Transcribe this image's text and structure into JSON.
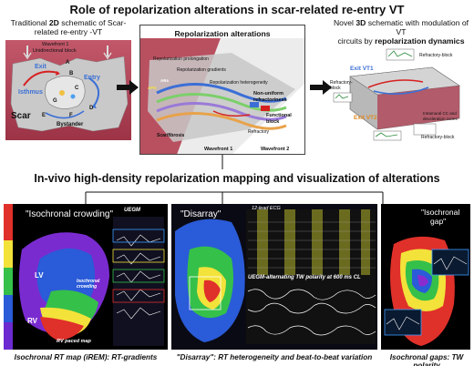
{
  "title": "Role of repolarization alterations in scar-related re-entry VT",
  "top": {
    "left_caption_1": "Traditional ",
    "left_caption_2d": "2D",
    "left_caption_2": " schematic of Scar-",
    "left_caption_3": "related re-entry -VT",
    "middle_caption": "Repolarization alterations",
    "right_caption_1": "Novel ",
    "right_caption_3d": "3D",
    "right_caption_2": " schematic with modulation of VT",
    "right_caption_3": "circuits by ",
    "right_caption_bold": "repolarization dynamics"
  },
  "left_schematic": {
    "wavefront": "Wavefront 1",
    "block": "Unidirectional block",
    "exit": "Exit",
    "entry": "Entry",
    "isthmus": "Isthmus",
    "scar": "Scar",
    "bystander": "Bystander",
    "letters": [
      "A",
      "B",
      "C",
      "D",
      "E",
      "F",
      "G"
    ]
  },
  "middle_schematic": {
    "prolongation": "Repolarization prolongation",
    "gradients": "Repolarization gradients",
    "heterogeneity": "Repolarization heterogeneity",
    "non_uniform": "Non-uniform",
    "refractoriness": "refractoriness",
    "functional": "Functional",
    "block": "block",
    "refractory": "Refractory",
    "scar_fibrosis": "Scar/fibrosis",
    "wavefront1": "Wavefront 1",
    "wavefront2": "Wavefront 2",
    "apd": "APD",
    "ars": "ARs"
  },
  "right_schematic": {
    "exit_vt1": "Exit VT1",
    "exit_vt2": "Exit VT2",
    "refractory_block_top": "Refractory-block",
    "refractory_block_left": "Refractory-",
    "refractory_block_left2": "block",
    "intramural": "Intramural CC and",
    "deceleration": "deceleration zones",
    "refractory_block_bottom": "Refractory-block"
  },
  "section_title": "In-vivo high-density repolarization mapping and visualization of alterations",
  "bottom": {
    "panel1": {
      "quote": "\"Isochronal crowding\"",
      "uegm": "UEGM",
      "lv": "LV",
      "rv": "RV",
      "crowding_1": "Isochronal",
      "crowding_2": "crowding",
      "rv_paced": "RV paced map",
      "caption": "Isochronal RT map (iREM): RT-gradients"
    },
    "panel2": {
      "quote": "\"Disarray\"",
      "ecg": "12-lead ECG",
      "uegm_note": "UEGM-alternating TW polarity at 600 ms CL",
      "caption_1": "\"Disarray\"",
      "caption_2": ": RT heterogeneity and beat-to-beat variation"
    },
    "panel3": {
      "quote_1": "\"Isochronal",
      "quote_2": "gap\"",
      "caption": "Isochronal gaps: TW polarity"
    }
  },
  "colors": {
    "muscle": "#b2475a",
    "scar_grey": "#c9c9c9",
    "arrow_blue": "#3b6fd6",
    "arrow_red": "#d62020",
    "map_red": "#e0302a",
    "map_yellow": "#f3e23a",
    "map_green": "#35c04a",
    "map_blue": "#2a5bd8",
    "map_purple": "#8a2bd0",
    "dark_bg": "#0a0a14"
  }
}
